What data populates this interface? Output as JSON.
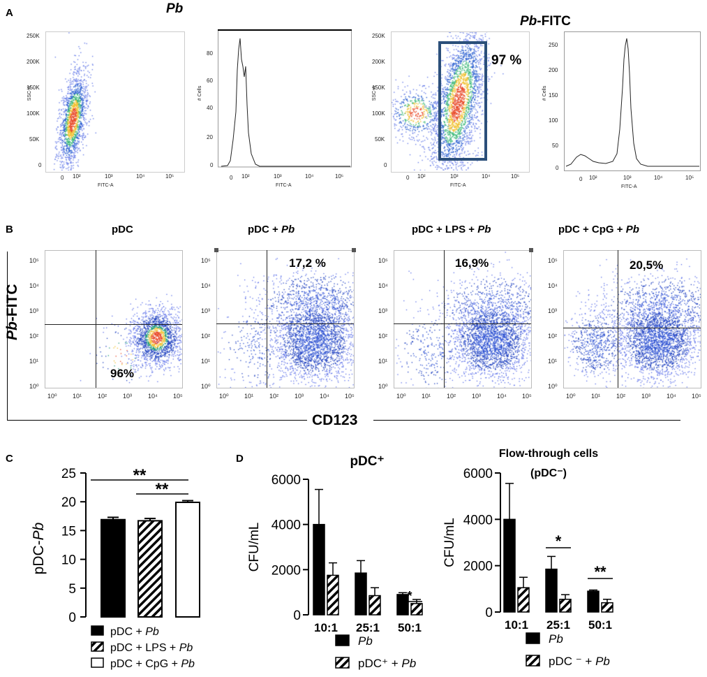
{
  "panel_a": {
    "letter": "A",
    "title_pb": "Pb",
    "title_pbfitc_italic": "Pb",
    "title_pbfitc_rest": "-FITC",
    "ssc_ticks": [
      "250K",
      "200K",
      "150K",
      "100K",
      "50K",
      "0"
    ],
    "hist1_ticks": [
      "80",
      "60",
      "40",
      "20",
      "0"
    ],
    "hist2_ticks": [
      "250",
      "200",
      "150",
      "100",
      "50",
      "0"
    ],
    "x_ticks": [
      "0",
      "10²",
      "10³",
      "10⁴",
      "10⁵"
    ],
    "ssc_label": "SSC-A",
    "fitc_label": "FITC-A",
    "cells_label": "# Cells",
    "gate_percent": "97 %"
  },
  "panel_b": {
    "letter": "B",
    "titles": [
      {
        "plain": "pDC",
        "italic": ""
      },
      {
        "plain": "pDC + ",
        "italic": "Pb"
      },
      {
        "plain": "pDC + LPS + ",
        "italic": "Pb"
      },
      {
        "plain": "pDC + CpG + ",
        "italic": "Pb"
      }
    ],
    "percents": [
      "96%",
      "17,2 %",
      "16,9%",
      "20,5%"
    ],
    "y_axis_italic": "Pb",
    "y_axis_rest": "-FITC",
    "x_axis": "CD123",
    "ticks": [
      "10⁵",
      "10⁴",
      "10³",
      "10²",
      "10¹",
      "10⁰"
    ],
    "x_ticks": [
      "10⁰",
      "10¹",
      "10²",
      "10³",
      "10⁴",
      "10⁵"
    ]
  },
  "panel_c": {
    "letter": "C",
    "sig_top": "**",
    "sig_bottom": "**",
    "legend": [
      {
        "plain": "pDC + ",
        "italic": "Pb"
      },
      {
        "plain": "pDC + LPS + ",
        "italic": "Pb"
      },
      {
        "plain": "pDC + CpG + ",
        "italic": "Pb"
      }
    ]
  },
  "panel_d": {
    "letter": "D",
    "left_sig": "*",
    "right_sig": [
      "*",
      "**"
    ],
    "left_legend": [
      "Pb",
      "pDC⁺ + Pb"
    ],
    "right_legend": [
      "Pb",
      "pDC ⁻ + Pb"
    ]
  },
  "chart_data": [
    {
      "id": "C",
      "type": "bar",
      "ylabel": "pDC-Pb",
      "ylim": [
        0,
        25
      ],
      "yticks": [
        "0",
        "5",
        "10",
        "15",
        "20",
        "25"
      ],
      "categories": [
        "pDC + Pb",
        "pDC + LPS + Pb",
        "pDC + CpG + Pb"
      ],
      "values": [
        16.9,
        16.7,
        19.9
      ],
      "errors": [
        0.4,
        0.4,
        0.3
      ]
    },
    {
      "id": "D-left",
      "type": "bar",
      "title": "pDC⁺",
      "ylabel": "CFU/mL",
      "ylim": [
        0,
        6000
      ],
      "yticks": [
        "0",
        "2000",
        "4000",
        "6000"
      ],
      "categories": [
        "10:1",
        "25:1",
        "50:1"
      ],
      "series": [
        {
          "name": "Pb",
          "values": [
            4000,
            1850,
            900
          ],
          "errors": [
            1550,
            550,
            80
          ]
        },
        {
          "name": "pDC⁺ + Pb",
          "values": [
            1750,
            850,
            500
          ],
          "errors": [
            550,
            350,
            180
          ]
        }
      ]
    },
    {
      "id": "D-right",
      "type": "bar",
      "title": "Flow-through cells",
      "subtitle": "(pDC⁻)",
      "ylabel": "CFU/mL",
      "ylim": [
        0,
        6000
      ],
      "yticks": [
        "0",
        "2000",
        "4000",
        "6000"
      ],
      "categories": [
        "10:1",
        "25:1",
        "50:1"
      ],
      "series": [
        {
          "name": "Pb",
          "values": [
            4000,
            1850,
            900
          ],
          "errors": [
            1550,
            550,
            50
          ]
        },
        {
          "name": "pDC⁻ + Pb",
          "values": [
            1050,
            550,
            400
          ],
          "errors": [
            450,
            200,
            150
          ]
        }
      ]
    }
  ]
}
